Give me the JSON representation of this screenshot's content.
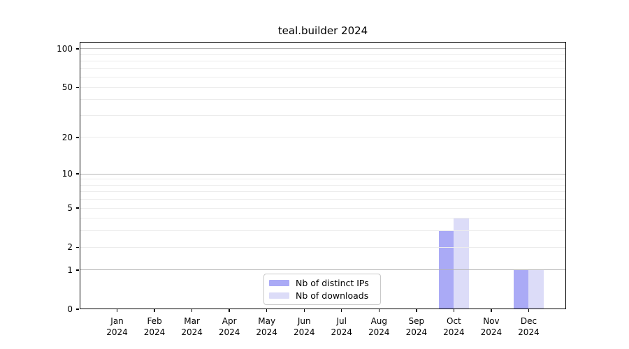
{
  "chart_data": {
    "type": "bar",
    "title": "teal.builder 2024",
    "categories": [
      {
        "line1": "Jan",
        "line2": "2024"
      },
      {
        "line1": "Feb",
        "line2": "2024"
      },
      {
        "line1": "Mar",
        "line2": "2024"
      },
      {
        "line1": "Apr",
        "line2": "2024"
      },
      {
        "line1": "May",
        "line2": "2024"
      },
      {
        "line1": "Jun",
        "line2": "2024"
      },
      {
        "line1": "Jul",
        "line2": "2024"
      },
      {
        "line1": "Aug",
        "line2": "2024"
      },
      {
        "line1": "Sep",
        "line2": "2024"
      },
      {
        "line1": "Oct",
        "line2": "2024"
      },
      {
        "line1": "Nov",
        "line2": "2024"
      },
      {
        "line1": "Dec",
        "line2": "2024"
      }
    ],
    "series": [
      {
        "name": "Nb of distinct IPs",
        "color": "#aaaaf6",
        "values": [
          0,
          0,
          0,
          0,
          0,
          0,
          0,
          0,
          0,
          3,
          0,
          1
        ]
      },
      {
        "name": "Nb of downloads",
        "color": "#dcdcf8",
        "values": [
          0,
          0,
          0,
          0,
          0,
          0,
          0,
          0,
          0,
          4,
          0,
          1
        ]
      }
    ],
    "xlabel": "",
    "ylabel": "",
    "y_scale": "log10(value+1)",
    "ylim": [
      0,
      113
    ],
    "y_ticks": [
      {
        "v": 0,
        "label": "0"
      },
      {
        "v": 1,
        "label": "1"
      },
      {
        "v": 2,
        "label": "2"
      },
      {
        "v": 5,
        "label": "5"
      },
      {
        "v": 10,
        "label": "10"
      },
      {
        "v": 20,
        "label": "20"
      },
      {
        "v": 50,
        "label": "50"
      },
      {
        "v": 100,
        "label": "100"
      }
    ],
    "grid": true,
    "grid_major_values": [
      1,
      10,
      100
    ],
    "grid_minor_values": [
      2,
      3,
      4,
      5,
      6,
      7,
      8,
      9,
      20,
      30,
      40,
      50,
      60,
      70,
      80,
      90
    ],
    "legend_position": "lower center"
  },
  "colors": {
    "background": "#ffffff",
    "text": "#000000",
    "axis": "#000000",
    "grid_major": "#b4b4b4",
    "grid_minor": "#ececec",
    "legend_border": "#c8c8c8",
    "legend_background": "#ffffff"
  }
}
